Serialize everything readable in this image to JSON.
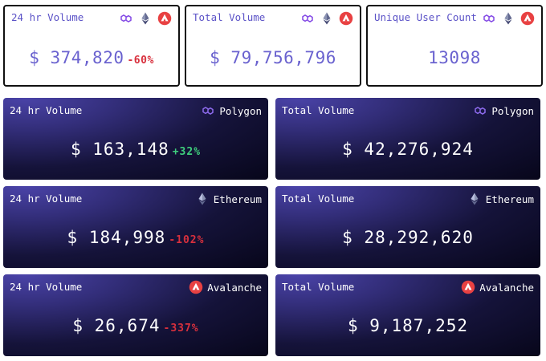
{
  "summary": [
    {
      "label": "24 hr Volume",
      "value": "$ 374,820",
      "change": "-60%"
    },
    {
      "label": "Total Volume",
      "value": "$ 79,756,796"
    },
    {
      "label": "Unique User Count",
      "value": "13098"
    }
  ],
  "rows": [
    {
      "chain": "Polygon",
      "day": {
        "label": "24 hr Volume",
        "value": "$ 163,148",
        "change": "+32%"
      },
      "total": {
        "label": "Total Volume",
        "value": "$ 42,276,924"
      }
    },
    {
      "chain": "Ethereum",
      "day": {
        "label": "24 hr Volume",
        "value": "$ 184,998",
        "change": "-102%"
      },
      "total": {
        "label": "Total Volume",
        "value": "$ 28,292,620"
      }
    },
    {
      "chain": "Avalanche",
      "day": {
        "label": "24 hr Volume",
        "value": "$ 26,674",
        "change": "-337%"
      },
      "total": {
        "label": "Total Volume",
        "value": "$ 9,187,252"
      }
    }
  ],
  "colors": {
    "positive": "#3fcf7d",
    "negative": "#d8303d",
    "polygon": "#8247e5",
    "avalanche": "#e84142"
  },
  "icons": [
    "polygon-icon",
    "ethereum-icon",
    "avalanche-icon"
  ]
}
